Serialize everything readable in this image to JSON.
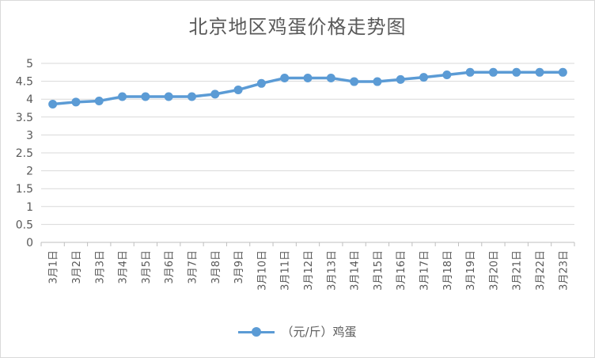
{
  "chart_data": {
    "type": "line",
    "title": "北京地区鸡蛋价格走势图",
    "categories": [
      "3月1日",
      "3月2日",
      "3月3日",
      "3月4日",
      "3月5日",
      "3月6日",
      "3月7日",
      "3月8日",
      "3月9日",
      "3月10日",
      "3月11日",
      "3月12日",
      "3月13日",
      "3月14日",
      "3月15日",
      "3月16日",
      "3月17日",
      "3月18日",
      "3月19日",
      "3月20日",
      "3月21日",
      "3月22日",
      "3月23日"
    ],
    "series": [
      {
        "name": "（元/斤）鸡蛋",
        "values": [
          3.86,
          3.92,
          3.95,
          4.07,
          4.07,
          4.07,
          4.07,
          4.14,
          4.26,
          4.44,
          4.59,
          4.59,
          4.59,
          4.49,
          4.49,
          4.55,
          4.61,
          4.68,
          4.75,
          4.75,
          4.75,
          4.75,
          4.75
        ]
      }
    ],
    "yticks": [
      "0",
      "0.5",
      "1",
      "1.5",
      "2",
      "2.5",
      "3",
      "3.5",
      "4",
      "4.5",
      "5"
    ],
    "ylim": [
      0,
      5
    ],
    "grid": true,
    "legend": "bottom",
    "line_color": "#5b9bd5"
  }
}
